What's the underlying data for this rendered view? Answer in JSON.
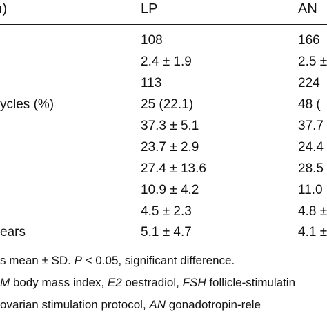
{
  "table": {
    "header": {
      "first_col": "ı)",
      "lp": "LP",
      "an": "AN"
    },
    "rows": [
      {
        "label": "",
        "lp": "108",
        "an": "166"
      },
      {
        "label": "",
        "lp": "2.4 ± 1.9",
        "an": "2.5 ±"
      },
      {
        "label": "",
        "lp": "113",
        "an": "224"
      },
      {
        "label": "ycles (%)",
        "lp": "25 (22.1)",
        "an": "48 ("
      },
      {
        "label": "",
        "lp": "37.3 ± 5.1",
        "an": "37.7"
      },
      {
        "label": "",
        "lp": "23.7 ± 2.9",
        "an": "24.4"
      },
      {
        "label": "",
        "lp": "27.4 ± 13.6",
        "an": "28.5"
      },
      {
        "label": "",
        "lp": "10.9 ± 4.2",
        "an": "11.0"
      },
      {
        "label": "",
        "lp": "4.5 ± 2.3",
        "an": "4.8 ±"
      },
      {
        "label": "ears",
        "lp": "5.1 ± 4.7",
        "an": "4.1 ±"
      }
    ]
  },
  "footnotes": {
    "line1": {
      "a": "s mean ± SD. ",
      "b": "P",
      "c": " < 0.05, significant difference."
    },
    "line2": {
      "a": "M",
      "b": " body mass index, ",
      "c": "E2",
      "d": " oestradiol, ",
      "e": "FSH",
      "f": " follicle-stimulatin"
    },
    "line3": {
      "a": " ovarian stimulation protocol, ",
      "b": "AN",
      "c": " gonadotropin-rele"
    }
  }
}
